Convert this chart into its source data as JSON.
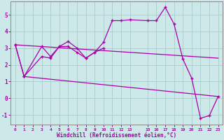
{
  "xlabel": "Windchill (Refroidissement éolien,°C)",
  "background_color": "#cce8e8",
  "grid_color": "#aacccc",
  "line_color": "#aa00aa",
  "xlim": [
    -0.5,
    23.5
  ],
  "ylim": [
    -1.6,
    5.8
  ],
  "xticks": [
    0,
    1,
    2,
    3,
    4,
    5,
    6,
    7,
    8,
    9,
    10,
    11,
    12,
    13,
    15,
    16,
    17,
    18,
    19,
    20,
    21,
    22,
    23
  ],
  "yticks": [
    -1,
    0,
    1,
    2,
    3,
    4,
    5
  ],
  "line1_x": [
    0,
    1,
    3,
    4,
    5,
    6,
    7,
    8,
    9,
    10,
    11,
    12,
    13,
    15,
    16,
    17,
    18,
    19,
    20,
    21,
    22,
    23
  ],
  "line1_y": [
    3.2,
    1.3,
    3.1,
    2.5,
    3.1,
    3.4,
    3.0,
    2.4,
    2.75,
    3.35,
    4.65,
    4.65,
    4.7,
    4.65,
    4.65,
    5.45,
    4.45,
    2.35,
    1.2,
    -1.2,
    -1.05,
    0.1
  ],
  "line2_x": [
    0,
    1,
    3,
    4,
    5,
    6,
    7,
    8,
    9,
    10
  ],
  "line2_y": [
    3.2,
    1.3,
    2.5,
    2.4,
    3.1,
    3.1,
    2.75,
    2.4,
    2.75,
    3.0
  ],
  "line3_x": [
    0,
    23
  ],
  "line3_y": [
    3.2,
    2.4
  ],
  "line4_x": [
    1,
    23
  ],
  "line4_y": [
    1.3,
    0.1
  ]
}
